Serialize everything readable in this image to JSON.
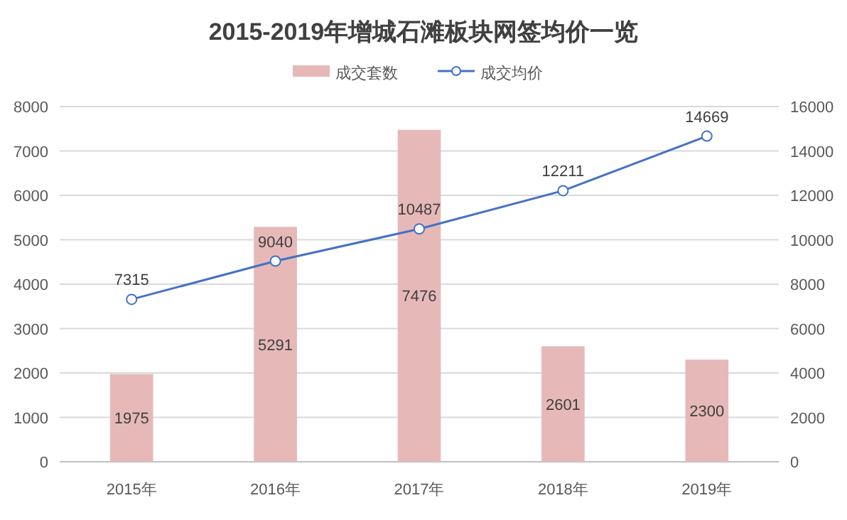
{
  "chart_data": {
    "type": "bar",
    "title": "2015-2019年增城石滩板块网签均价一览",
    "categories": [
      "2015年",
      "2016年",
      "2017年",
      "2018年",
      "2019年"
    ],
    "series": [
      {
        "name": "成交套数",
        "color": "#e6b9b8",
        "values": [
          1975,
          5291,
          7476,
          2601,
          2300
        ]
      },
      {
        "name": "成交均价",
        "type": "line",
        "axis": "y2",
        "color": "#4472c4",
        "values": [
          7315,
          9040,
          10487,
          12211,
          14669
        ]
      }
    ],
    "ylim": [
      0,
      8000
    ],
    "yticks": [
      0,
      1000,
      2000,
      3000,
      4000,
      5000,
      6000,
      7000,
      8000
    ],
    "y2lim": [
      0,
      16000
    ],
    "y2ticks": [
      0,
      2000,
      4000,
      6000,
      8000,
      10000,
      12000,
      14000,
      16000
    ],
    "grid": "y",
    "legend": "top",
    "data_labels": true,
    "marker": "circle",
    "line_style": "solid"
  }
}
